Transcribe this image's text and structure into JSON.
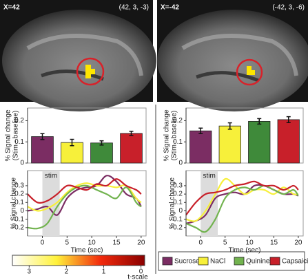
{
  "images": [
    {
      "label": "X=42",
      "coords": "(42, 3, -3)"
    },
    {
      "label": "X=-42",
      "coords": "(-42, 3, -6)"
    }
  ],
  "chart_data": [
    {
      "type": "bar",
      "ylabel": [
        "% Signal change",
        "(Stim - baseline)"
      ],
      "values": [
        0.125,
        0.097,
        0.095,
        0.14
      ],
      "errors": [
        0.014,
        0.015,
        0.01,
        0.01
      ],
      "colors": [
        "#7b2d63",
        "#f7f03a",
        "#3f8a3a",
        "#c8202a"
      ],
      "ylim": [
        0,
        0.26
      ],
      "yticks": [
        0,
        0.1,
        0.2
      ]
    },
    {
      "type": "bar",
      "ylabel": [
        "% Signal change",
        "(Stim - baseline)"
      ],
      "values": [
        0.152,
        0.175,
        0.197,
        0.205
      ],
      "errors": [
        0.013,
        0.015,
        0.013,
        0.014
      ],
      "colors": [
        "#7b2d63",
        "#f7f03a",
        "#3f8a3a",
        "#c8202a"
      ],
      "ylim": [
        0,
        0.26
      ],
      "yticks": [
        0,
        0.1,
        0.2
      ]
    },
    {
      "type": "line",
      "ylabel": "% Signal change",
      "xlabel": "Time (sec)",
      "annotation": "stim",
      "stim_window": [
        0,
        3.5
      ],
      "x": [
        -3,
        -1,
        1,
        3,
        5,
        7,
        9,
        11,
        13,
        15,
        17,
        19,
        20
      ],
      "series": [
        {
          "name": "Sucrose",
          "color": "#7b2d63",
          "values": [
            0.0,
            0.02,
            0.05,
            -0.05,
            0.15,
            0.25,
            0.28,
            0.3,
            0.42,
            0.35,
            0.2,
            0.15,
            0.05
          ]
        },
        {
          "name": "NaCl",
          "color": "#f7f03a",
          "values": [
            0.05,
            0.0,
            0.03,
            0.1,
            0.22,
            0.3,
            0.33,
            0.3,
            0.3,
            0.28,
            0.3,
            0.15,
            0.1
          ]
        },
        {
          "name": "Quinine",
          "color": "#72b34f",
          "values": [
            -0.2,
            -0.21,
            -0.15,
            0.05,
            0.2,
            0.28,
            0.3,
            0.25,
            0.2,
            0.15,
            0.28,
            0.1,
            0.05
          ]
        },
        {
          "name": "Capsaicin",
          "color": "#c8202a",
          "values": [
            0.2,
            0.1,
            0.12,
            0.2,
            0.3,
            0.28,
            0.25,
            0.32,
            0.3,
            0.38,
            0.3,
            0.25,
            0.2
          ]
        }
      ],
      "xlim": [
        -3,
        21
      ],
      "xticks": [
        0,
        5,
        10,
        15,
        20
      ],
      "ylim": [
        -0.3,
        0.48
      ],
      "yticks": [
        -0.2,
        -0.1,
        0,
        0.1,
        0.2,
        0.3
      ]
    },
    {
      "type": "line",
      "ylabel": "% Signal change",
      "xlabel": "Time (sec)",
      "annotation": "stim",
      "stim_window": [
        0,
        3.5
      ],
      "x": [
        -3,
        -1,
        1,
        3,
        5,
        7,
        9,
        11,
        13,
        15,
        17,
        19,
        20
      ],
      "series": [
        {
          "name": "Sucrose",
          "color": "#7b2d63",
          "values": [
            -0.15,
            -0.12,
            -0.05,
            0.15,
            0.2,
            0.22,
            0.2,
            0.3,
            0.3,
            0.25,
            0.2,
            0.2,
            0.18
          ]
        },
        {
          "name": "NaCl",
          "color": "#f7f03a",
          "values": [
            -0.1,
            -0.12,
            0.0,
            0.2,
            0.38,
            0.3,
            0.2,
            0.25,
            0.25,
            0.2,
            0.28,
            0.2,
            0.2
          ]
        },
        {
          "name": "Quinine",
          "color": "#72b34f",
          "values": [
            -0.15,
            -0.2,
            -0.25,
            -0.1,
            0.15,
            0.25,
            0.28,
            0.25,
            0.3,
            0.25,
            0.2,
            0.25,
            0.18
          ]
        },
        {
          "name": "Capsaicin",
          "color": "#c8202a",
          "values": [
            -0.05,
            0.1,
            0.2,
            0.22,
            0.25,
            0.3,
            0.32,
            0.35,
            0.3,
            0.3,
            0.25,
            0.3,
            0.25
          ]
        }
      ],
      "xlim": [
        -3,
        21
      ],
      "xticks": [
        0,
        5,
        10,
        15,
        20
      ],
      "ylim": [
        -0.3,
        0.48
      ],
      "yticks": [
        -0.2,
        -0.1,
        0,
        0.1,
        0.2,
        0.3
      ]
    }
  ],
  "colorbar": {
    "label": "t-scale",
    "clim": [
      3.45,
      -0.1
    ],
    "ticks": [
      3,
      2,
      1,
      0
    ],
    "colors": [
      "#ffffff",
      "#fff23a",
      "#f22a0c",
      "#8a0000"
    ]
  }
}
